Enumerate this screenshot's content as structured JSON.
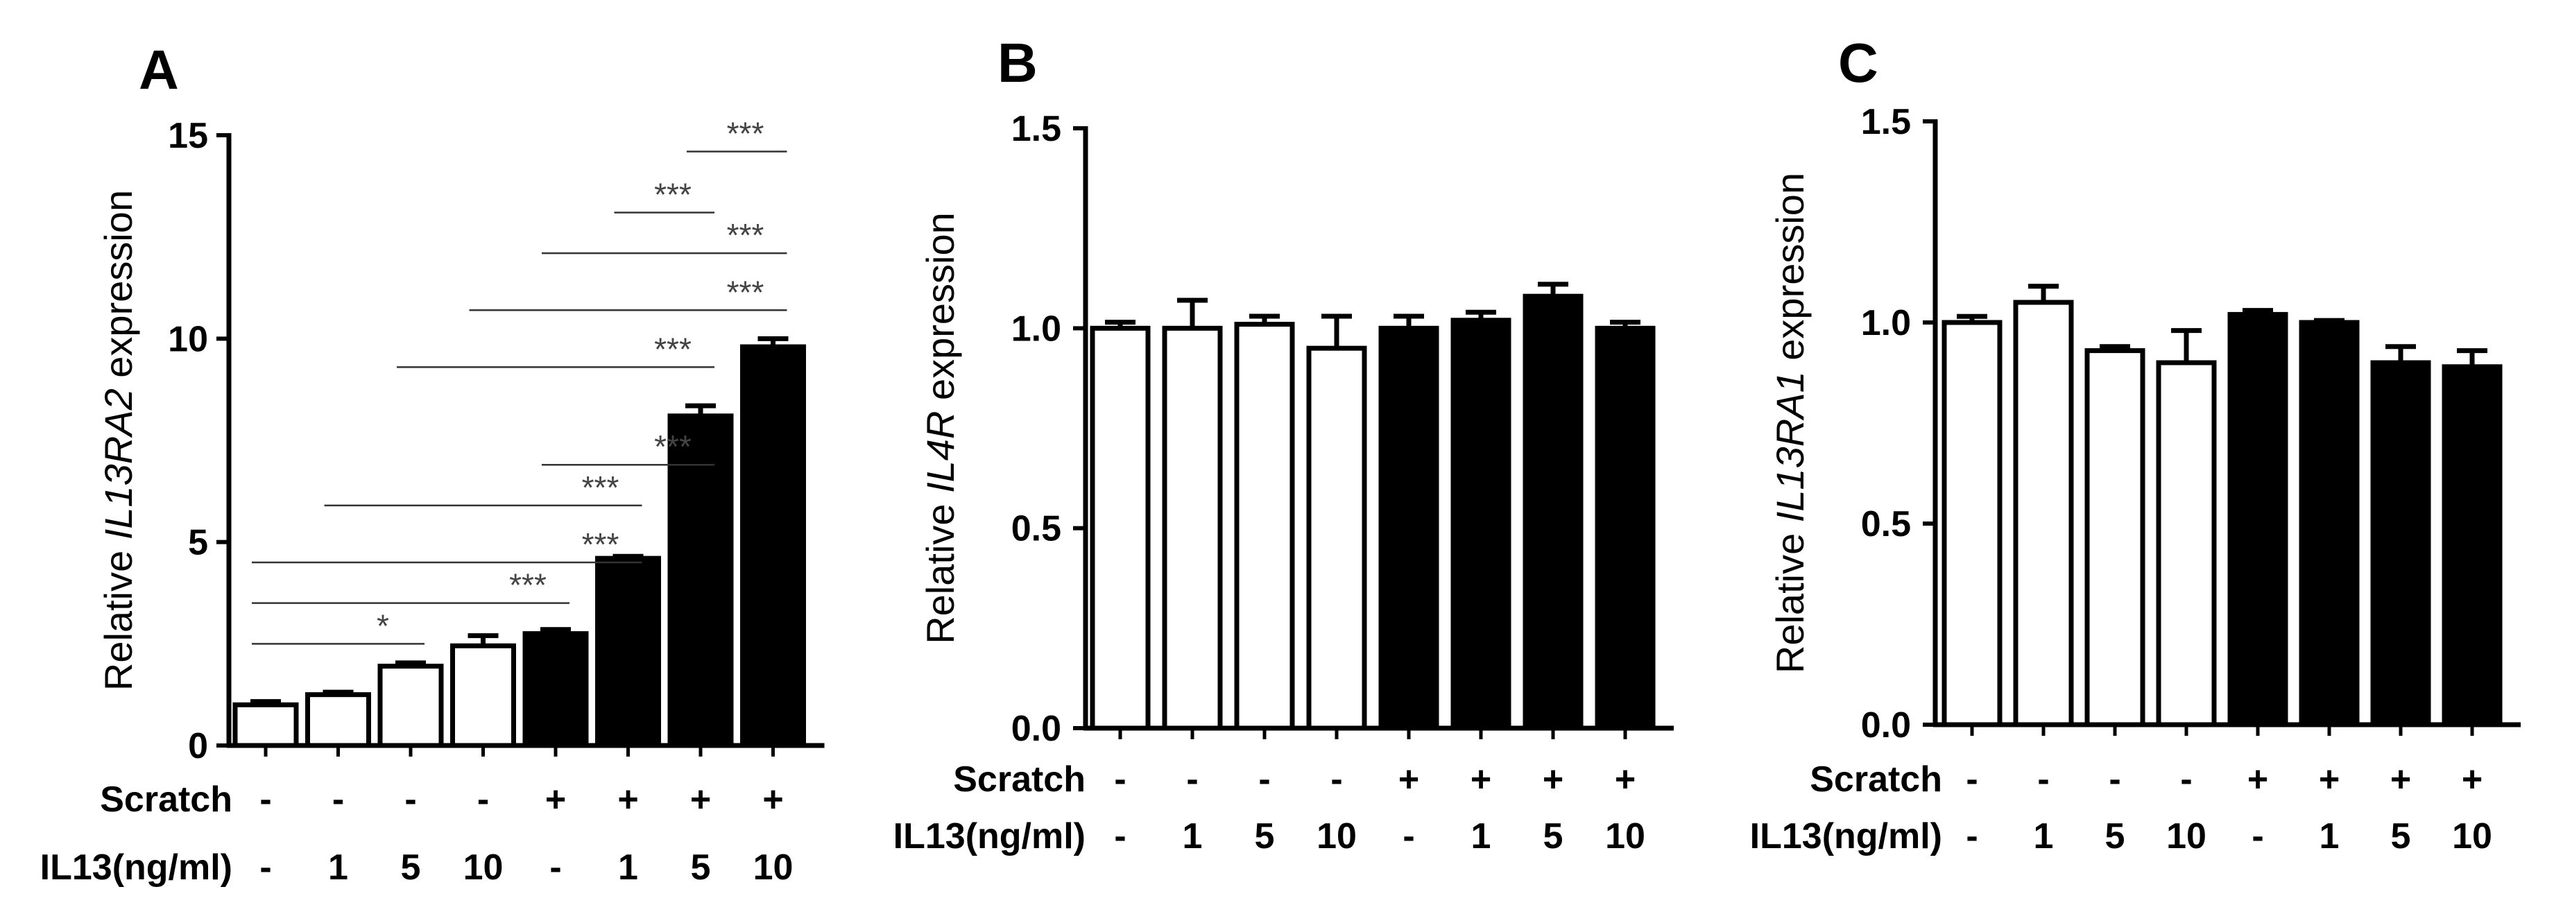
{
  "row_labels": {
    "scratch": "Scratch",
    "il13": "IL13(ng/ml)"
  },
  "categories": {
    "scratch": [
      "-",
      "-",
      "-",
      "-",
      "+",
      "+",
      "+",
      "+"
    ],
    "il13": [
      "-",
      "1",
      "5",
      "10",
      "-",
      "1",
      "5",
      "10"
    ]
  },
  "bar_fills": [
    "#ffffff",
    "#ffffff",
    "#ffffff",
    "#ffffff",
    "#000000",
    "#000000",
    "#000000",
    "#000000"
  ],
  "colors": {
    "axis": "#000000",
    "sig_line": "#333333",
    "sig_text": "#444444"
  },
  "chart_data": [
    {
      "panel": "A",
      "type": "bar",
      "ylabel_prefix": "Relative ",
      "ylabel_gene": "IL13RA2",
      "ylabel_suffix": " expression",
      "ylim": [
        0,
        15
      ],
      "yticks": [
        0,
        5,
        10,
        15
      ],
      "ytick_labels": [
        "0",
        "5",
        "10",
        "15"
      ],
      "values": [
        1.0,
        1.25,
        1.95,
        2.45,
        2.75,
        4.6,
        8.1,
        9.8
      ],
      "errors": [
        0.08,
        0.06,
        0.08,
        0.25,
        0.1,
        0.05,
        0.25,
        0.2
      ],
      "significance": [
        {
          "from": 0,
          "to": 2,
          "y": 2.5,
          "label": "*"
        },
        {
          "from": 0,
          "to": 4,
          "y": 3.5,
          "label": "***"
        },
        {
          "from": 0,
          "to": 5,
          "y": 4.5,
          "label": "***"
        },
        {
          "from": 1,
          "to": 5,
          "y": 5.9,
          "label": "***"
        },
        {
          "from": 4,
          "to": 6,
          "y": 6.9,
          "label": "***"
        },
        {
          "from": 2,
          "to": 6,
          "y": 9.3,
          "label": "***"
        },
        {
          "from": 3,
          "to": 7,
          "y": 10.7,
          "label": "***"
        },
        {
          "from": 4,
          "to": 7,
          "y": 12.1,
          "label": "***"
        },
        {
          "from": 5,
          "to": 6,
          "y": 13.1,
          "label": "***"
        },
        {
          "from": 6,
          "to": 7,
          "y": 14.6,
          "label": "***"
        }
      ]
    },
    {
      "panel": "B",
      "type": "bar",
      "ylabel_prefix": "Relative ",
      "ylabel_gene": "IL4R",
      "ylabel_suffix": " expression",
      "ylim": [
        0,
        1.5
      ],
      "yticks": [
        0,
        0.5,
        1.0,
        1.5
      ],
      "ytick_labels": [
        "0.0",
        "0.5",
        "1.0",
        "1.5"
      ],
      "values": [
        1.0,
        1.0,
        1.01,
        0.95,
        1.0,
        1.02,
        1.08,
        1.0
      ],
      "errors": [
        0.015,
        0.07,
        0.02,
        0.08,
        0.03,
        0.02,
        0.03,
        0.015
      ],
      "significance": []
    },
    {
      "panel": "C",
      "type": "bar",
      "ylabel_prefix": "Relative ",
      "ylabel_gene": "IL13RA1",
      "ylabel_suffix": " expression",
      "ylim": [
        0,
        1.5
      ],
      "yticks": [
        0,
        0.5,
        1.0,
        1.5
      ],
      "ytick_labels": [
        "0.0",
        "0.5",
        "1.0",
        "1.5"
      ],
      "values": [
        1.0,
        1.05,
        0.93,
        0.9,
        1.02,
        1.0,
        0.9,
        0.89
      ],
      "errors": [
        0.015,
        0.04,
        0.01,
        0.08,
        0.01,
        0.005,
        0.04,
        0.04
      ],
      "significance": []
    }
  ]
}
